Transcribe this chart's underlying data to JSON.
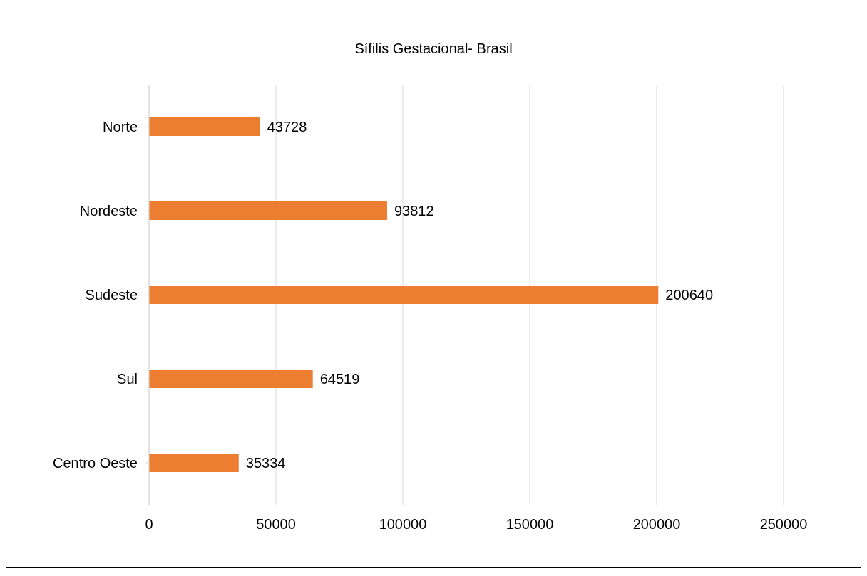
{
  "chart_data": {
    "type": "bar",
    "orientation": "horizontal",
    "title": "Sífilis Gestacional- Brasil",
    "categories": [
      "Norte",
      "Nordeste",
      "Sudeste",
      "Sul",
      "Centro Oeste"
    ],
    "values": [
      43728,
      93812,
      200640,
      64519,
      35334
    ],
    "color": "#ed7d31",
    "xlim": [
      0,
      250000
    ],
    "xticks": [
      0,
      50000,
      100000,
      150000,
      200000,
      250000
    ],
    "grid": "x",
    "data_labels": true
  }
}
